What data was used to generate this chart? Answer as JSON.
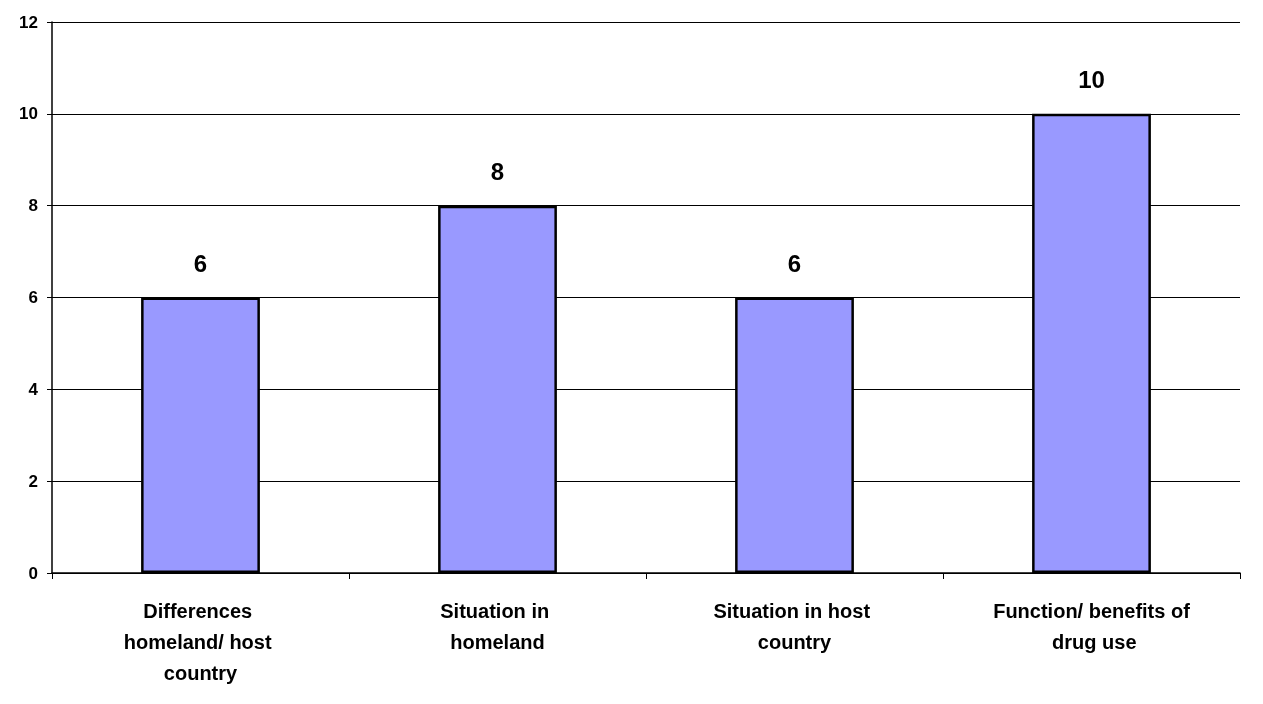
{
  "chart_data": {
    "type": "bar",
    "categories": [
      "Differences homeland/ host country",
      "Situation in homeland",
      "Situation in host country",
      "Function/ benefits of drug use"
    ],
    "values": [
      6,
      8,
      6,
      10
    ],
    "color": "#9999ff",
    "ylim": [
      0,
      12
    ],
    "yticks": [
      0,
      2,
      4,
      6,
      8,
      10,
      12
    ],
    "grid": "y",
    "data_labels": true
  }
}
